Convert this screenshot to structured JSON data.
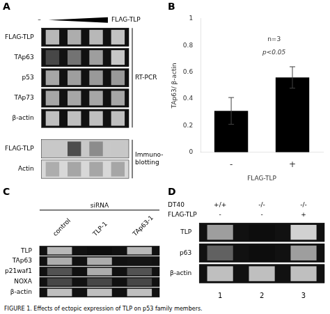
{
  "chart_data": [
    {
      "type": "heatmap",
      "title": "A",
      "annotations": [
        "–",
        "FLAG-TLP"
      ],
      "categories": [
        null,
        null,
        null,
        null
      ],
      "color_range": [
        0,
        1
      ],
      "groups": [
        {
          "name": "RT-PCR",
          "series": [
            {
              "name": "FLAG-TLP",
              "values": [
                0.72,
                0.68,
                0.72,
                0.76
              ],
              "color": "#111111"
            },
            {
              "name": "TAp63",
              "values": [
                0.28,
                0.45,
                0.62,
                0.78
              ],
              "color": "#111111"
            },
            {
              "name": "p53",
              "values": [
                0.65,
                0.62,
                0.6,
                0.6
              ],
              "color": "#111111"
            },
            {
              "name": "TAp73",
              "values": [
                0.65,
                0.65,
                0.65,
                0.65
              ],
              "color": "#111111"
            },
            {
              "name": "β-actin",
              "values": [
                0.75,
                0.75,
                0.75,
                0.75
              ],
              "color": "#111111"
            }
          ]
        },
        {
          "name": "Immuno-\nblotting",
          "series": [
            {
              "name": "FLAG-TLP",
              "values": [
                0.0,
                0.3,
                0.55,
                0.78
              ],
              "color": "#c8c8c8"
            },
            {
              "name": "Actin",
              "values": [
                0.68,
                0.65,
                0.65,
                0.65
              ],
              "color": "#d8d8d8"
            }
          ]
        }
      ]
    },
    {
      "type": "bar",
      "title": "B",
      "categories": [
        "-",
        "+"
      ],
      "values": [
        0.31,
        0.56
      ],
      "errors": [
        0.1,
        0.08
      ],
      "color": "#000000",
      "xlabel": "FLAG-TLP",
      "ylabel": "TAp63/ β-actin",
      "ylim": [
        0,
        1.0
      ],
      "yticks": [
        0,
        0.2,
        0.4,
        0.6,
        0.8,
        1
      ],
      "annotations": [
        "n=3",
        "p<0.05"
      ],
      "grid": false
    },
    {
      "type": "heatmap",
      "title": "C",
      "xlabel": "siRNA",
      "categories": [
        "control",
        "TLP-1",
        "TAp63-1"
      ],
      "color_range": [
        0,
        1
      ],
      "series": [
        {
          "name": "TLP",
          "values": [
            0.72,
            0.05,
            0.72
          ],
          "color": "#111111"
        },
        {
          "name": "TAp63",
          "values": [
            0.68,
            0.68,
            0.08
          ],
          "color": "#111111"
        },
        {
          "name": "p21waf1",
          "values": [
            0.32,
            0.68,
            0.32
          ],
          "color": "#111111"
        },
        {
          "name": "NOXA",
          "values": [
            0.28,
            0.28,
            0.28
          ],
          "color": "#111111"
        },
        {
          "name": "β-actin",
          "values": [
            0.75,
            0.75,
            0.75
          ],
          "color": "#111111"
        }
      ]
    },
    {
      "type": "heatmap",
      "title": "D",
      "categories": [
        "1",
        "2",
        "3"
      ],
      "header_rows": [
        {
          "name": "DT40",
          "values": [
            "+/+",
            "-/-",
            "-/-"
          ]
        },
        {
          "name": "FLAG-TLP",
          "values": [
            "-",
            "-",
            "+"
          ]
        }
      ],
      "color_range": [
        0,
        1
      ],
      "series": [
        {
          "name": "TLP",
          "values": [
            0.62,
            0.05,
            0.82
          ],
          "color": "#111111"
        },
        {
          "name": "p63",
          "values": [
            0.38,
            0.05,
            0.62
          ],
          "color": "#111111"
        },
        {
          "name": "β-actin",
          "values": [
            0.75,
            0.75,
            0.75
          ],
          "color": "#111111"
        }
      ]
    }
  ],
  "caption": "FIGURE 1. Effects of ectopic expression of TLP on p53 family members."
}
